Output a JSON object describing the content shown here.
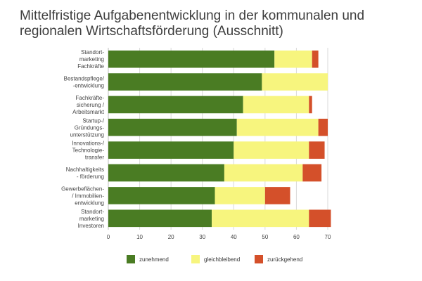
{
  "chart_data": {
    "type": "bar",
    "orientation": "horizontal",
    "stacked": true,
    "title": "Mittelfristige Aufgabenentwicklung in der kommunalen und regionalen Wirtschaftsförderung (Ausschnitt)",
    "categories": [
      [
        "Standort-",
        "marketing",
        "Fachkräfte"
      ],
      [
        "Bestandspflege/",
        "-entwicklung"
      ],
      [
        "Fachkräfte-",
        "sicherung /",
        "Arbeitsmarkt"
      ],
      [
        "Startup-/",
        "Gründungs-",
        "unterstützung"
      ],
      [
        "Innovations-/",
        "Technologie-",
        "transfer"
      ],
      [
        "Nachhaltigkeits",
        "- förderung"
      ],
      [
        "Gewerbeflächen-",
        "/ Immobilien-",
        "entwicklung"
      ],
      [
        "Standort-",
        "marketing",
        "Investoren"
      ]
    ],
    "series": [
      {
        "name": "zunehmend",
        "color": "#4a7c23",
        "values": [
          53,
          49,
          43,
          41,
          40,
          37,
          34,
          33
        ]
      },
      {
        "name": "gleichbleibend",
        "color": "#f7f57e",
        "values": [
          12,
          21,
          21,
          26,
          24,
          25,
          16,
          31
        ]
      },
      {
        "name": "zurückgehend",
        "color": "#d4502a",
        "values": [
          2,
          0,
          1,
          3,
          5,
          6,
          8,
          7
        ]
      }
    ],
    "xlim": [
      0,
      70
    ],
    "xticks": [
      0,
      10,
      20,
      30,
      40,
      50,
      60,
      70
    ],
    "grid": true,
    "legend": "bottom"
  }
}
